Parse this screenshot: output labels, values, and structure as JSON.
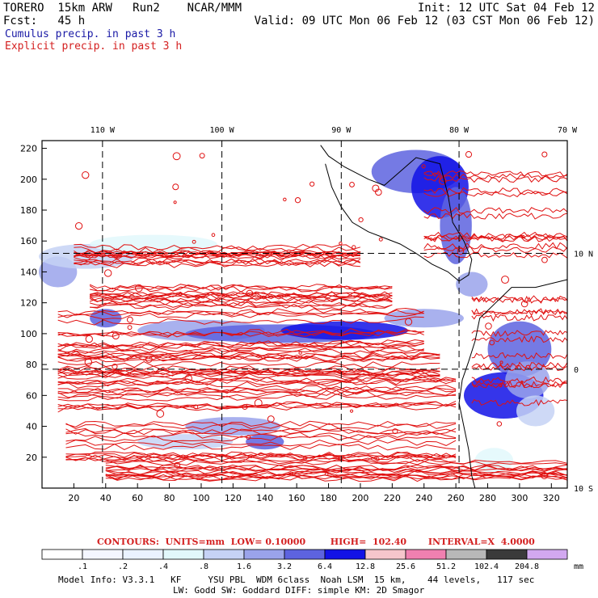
{
  "header": {
    "line1_left": "TORERO  15km ARW   Run2    NCAR/MMM",
    "line2_left": "Fcst:   45 h",
    "line1_right": "Init: 12 UTC Sat 04 Feb 12",
    "line2_right": "Valid: 09 UTC Mon 06 Feb 12 (03 CST Mon 06 Feb 12)",
    "field1": "Cumulus precip. in past 3 h",
    "field2": "Explicit precip. in past 3 h"
  },
  "map": {
    "lon_labels": [
      "110 W",
      "100 W",
      "90 W",
      "80 W",
      "70 W"
    ],
    "lat_labels": [
      "10 N",
      "0",
      "10 S"
    ],
    "x_ticks": [
      "20",
      "40",
      "60",
      "80",
      "100",
      "120",
      "140",
      "160",
      "180",
      "200",
      "220",
      "240",
      "260",
      "280",
      "300",
      "320"
    ],
    "y_ticks": [
      "20",
      "40",
      "60",
      "80",
      "100",
      "120",
      "140",
      "160",
      "180",
      "200",
      "220"
    ],
    "x_range": [
      0,
      330
    ],
    "y_range": [
      0,
      225
    ]
  },
  "contours_line": "CONTOURS:  UNITS=mm  LOW= 0.10000        HIGH=  102.40       INTERVAL=X  4.0000",
  "legend": {
    "labels": [
      ".1",
      ".2",
      ".4",
      ".8",
      "1.6",
      "3.2",
      "6.4",
      "12.8",
      "25.6",
      "51.2",
      "102.4",
      "204.8"
    ],
    "colors": [
      "#ffffff",
      "#f4f6ff",
      "#eaf2ff",
      "#e2f8fb",
      "#c6d2f5",
      "#9aa3eb",
      "#5d63df",
      "#1212e6",
      "#f6c6cc",
      "#f080b0",
      "#b8b8b8",
      "#3a3a3a",
      "#d2a8f0"
    ],
    "unit": "mm"
  },
  "model_info": {
    "line1": "Model Info: V3.3.1   KF     YSU PBL  WDM 6class  Noah LSM  15 km,    44 levels,   117 sec",
    "line2": "LW: Godd SW: Goddard DIFF: simple KM: 2D Smagor"
  }
}
